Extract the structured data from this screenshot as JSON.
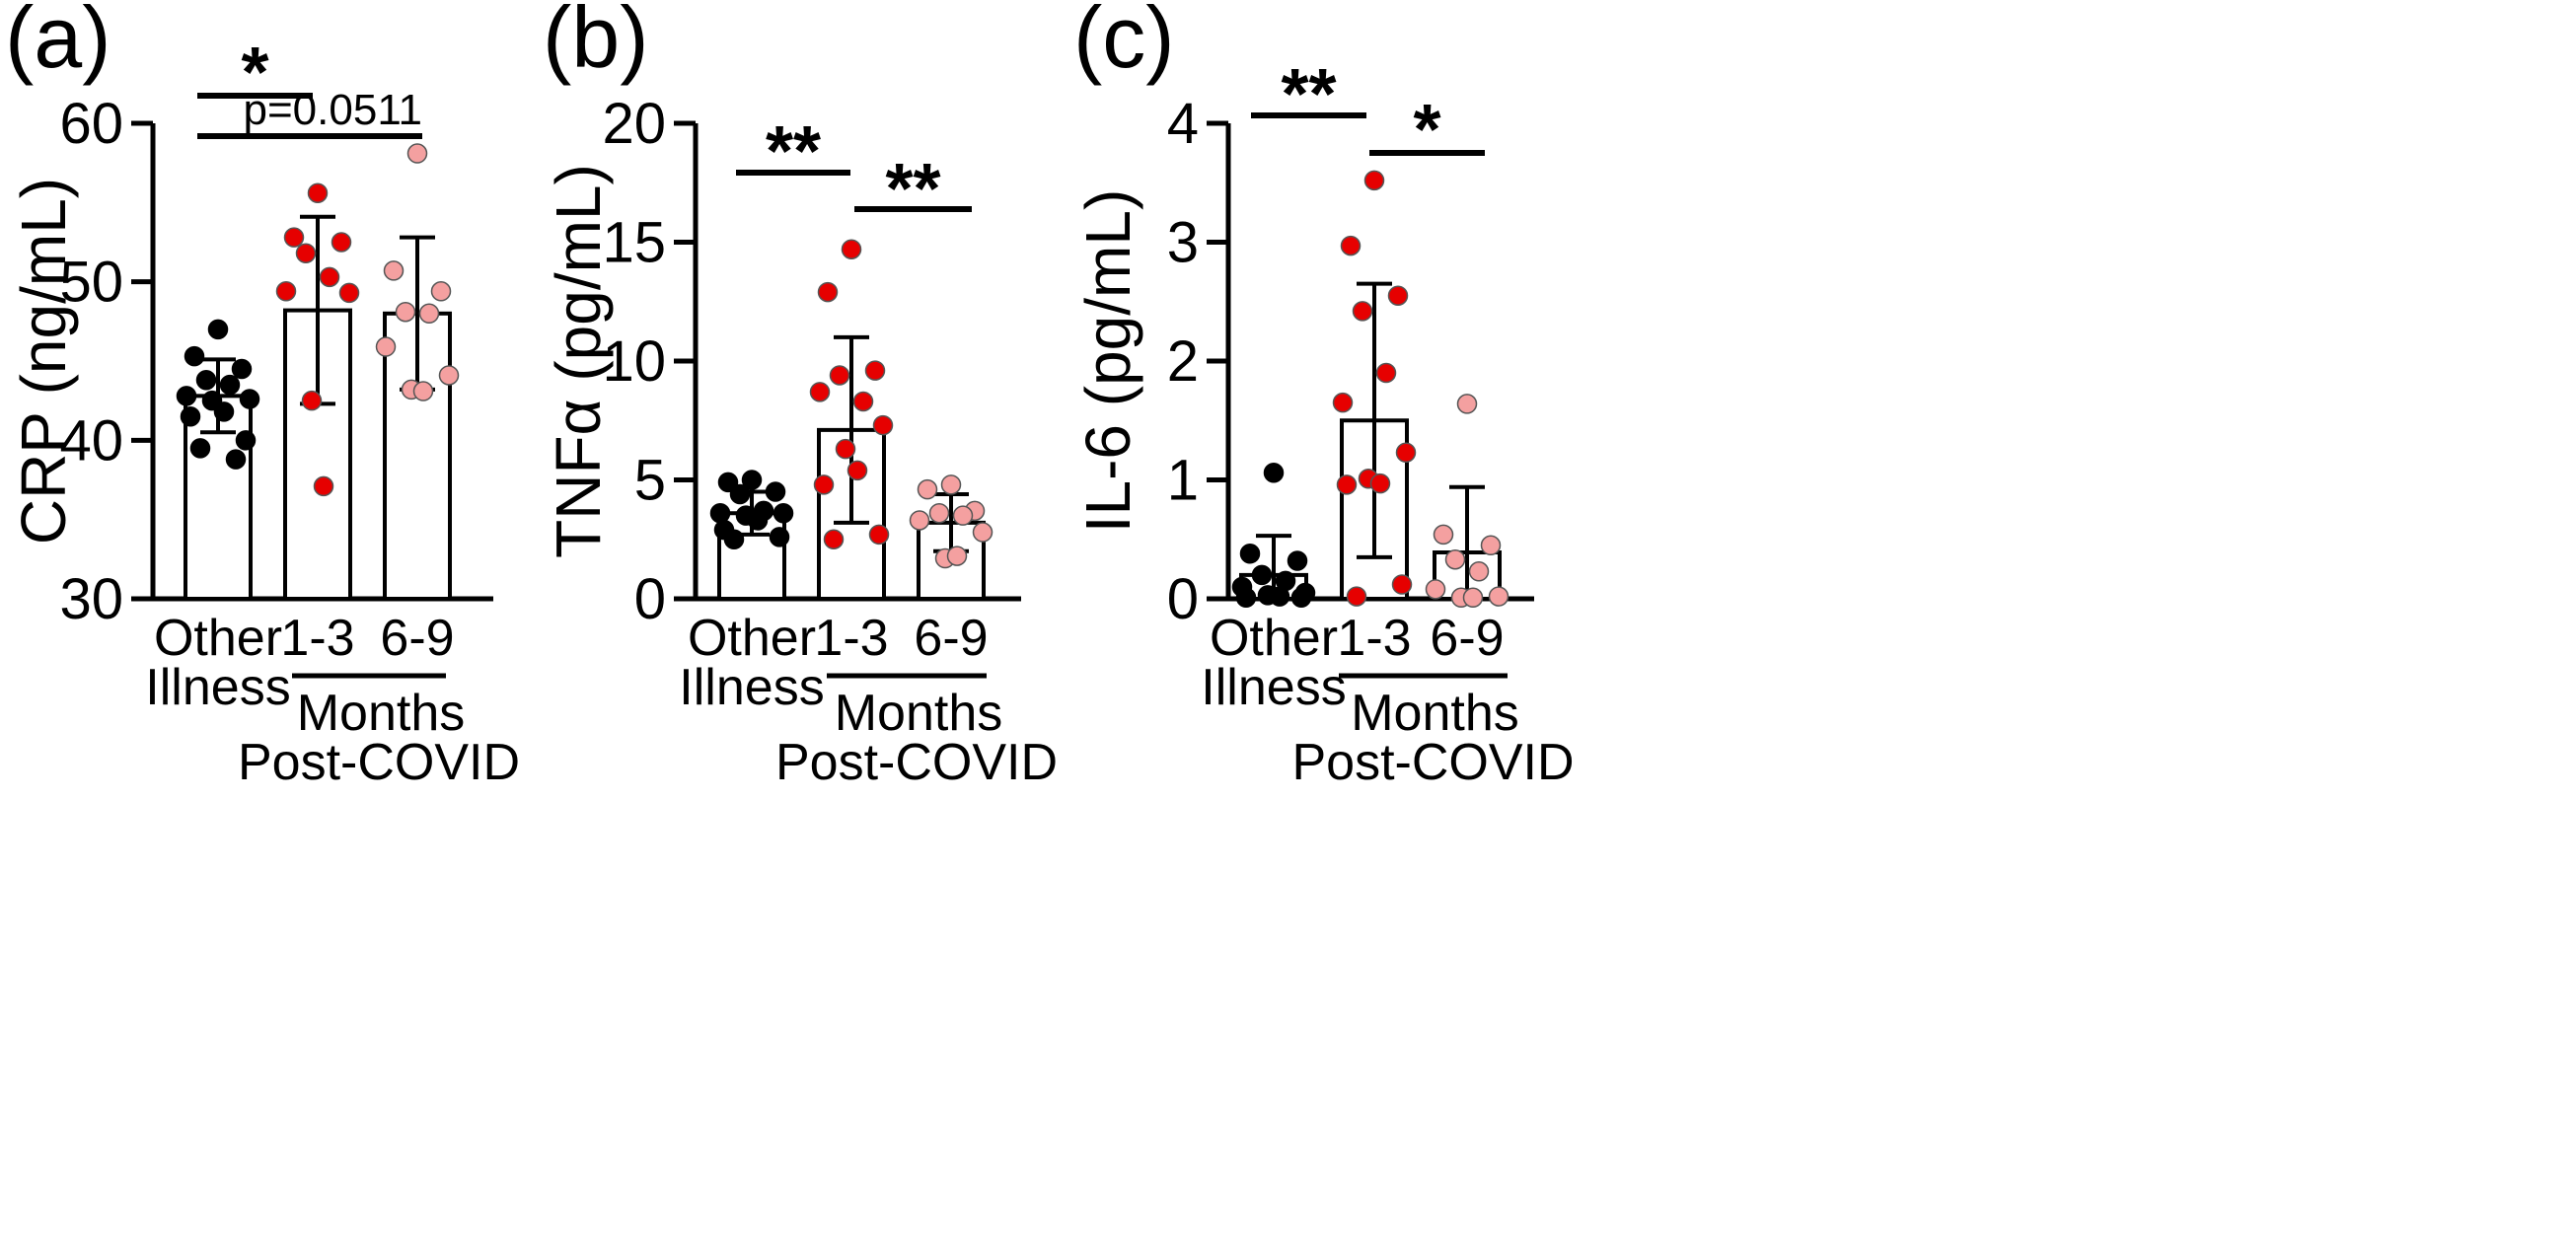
{
  "colors": {
    "other_illness": "#000000",
    "m1_3": "#e60000",
    "m6_9": "#f4a0a0",
    "axis": "#000000",
    "bar_fill": "#ffffff"
  },
  "group_label": {
    "line1": "Months",
    "line2": "Post-COVID"
  },
  "chart_data": [
    {
      "type": "bar",
      "panel_label": "(a)",
      "ylabel": "CRP (ng/mL)",
      "ylim": [
        30,
        60
      ],
      "yticks": [
        "30",
        "40",
        "50",
        "60"
      ],
      "categories": [
        {
          "line1": "Other",
          "line2": "Illness"
        },
        {
          "line1": "1-3",
          "line2": ""
        },
        {
          "line1": "6-9",
          "line2": ""
        }
      ],
      "series": [
        {
          "name": "Other Illness",
          "mean": 42.8,
          "sd": 2.3,
          "points": [
            47.0,
            45.3,
            44.5,
            43.8,
            43.5,
            42.8,
            42.6,
            42.5,
            41.8,
            41.5,
            40.0,
            39.5,
            38.8
          ]
        },
        {
          "name": "1-3",
          "mean": 48.2,
          "sd": 5.9,
          "points": [
            55.6,
            52.8,
            52.5,
            51.8,
            50.3,
            49.4,
            49.3,
            42.5,
            37.1
          ]
        },
        {
          "name": "6-9",
          "mean": 48.0,
          "sd": 4.8,
          "points": [
            58.1,
            50.7,
            49.4,
            48.1,
            48.0,
            45.9,
            44.1,
            43.2,
            43.1
          ]
        }
      ],
      "significance": [
        {
          "from": 0,
          "to": 1,
          "label": "*",
          "level": 1
        },
        {
          "from": 0,
          "to": 2,
          "label": "p=0.0511",
          "level": 0
        }
      ]
    },
    {
      "type": "bar",
      "panel_label": "(b)",
      "ylabel": "TNFα (pg/mL)",
      "ylim": [
        0,
        20
      ],
      "yticks": [
        "0",
        "5",
        "10",
        "15",
        "20"
      ],
      "categories": [
        {
          "line1": "Other",
          "line2": "Illness"
        },
        {
          "line1": "1-3",
          "line2": ""
        },
        {
          "line1": "6-9",
          "line2": ""
        }
      ],
      "series": [
        {
          "name": "Other Illness",
          "mean": 3.6,
          "sd": 0.9,
          "points": [
            5.0,
            4.9,
            4.5,
            4.4,
            3.7,
            3.6,
            3.6,
            3.5,
            3.3,
            2.9,
            2.6,
            2.5
          ]
        },
        {
          "name": "1-3",
          "mean": 7.1,
          "sd": 3.9,
          "points": [
            14.7,
            12.9,
            9.6,
            9.4,
            8.3,
            8.7,
            7.3,
            6.3,
            5.4,
            4.8,
            2.7,
            2.5
          ]
        },
        {
          "name": "6-9",
          "mean": 3.2,
          "sd": 1.2,
          "points": [
            4.8,
            4.6,
            3.7,
            3.6,
            3.5,
            3.3,
            2.8,
            1.7,
            1.8
          ]
        }
      ],
      "significance": [
        {
          "from": 0,
          "to": 1,
          "label": "**",
          "level": 1
        },
        {
          "from": 1,
          "to": 2,
          "label": "**",
          "level": 0
        }
      ]
    },
    {
      "type": "bar",
      "panel_label": "(c)",
      "ylabel": "IL-6 (pg/mL)",
      "ylim": [
        0,
        4
      ],
      "yticks": [
        "0",
        "1",
        "2",
        "3",
        "4"
      ],
      "categories": [
        {
          "line1": "Other",
          "line2": "Illness"
        },
        {
          "line1": "1-3",
          "line2": ""
        },
        {
          "line1": "6-9",
          "line2": ""
        }
      ],
      "series": [
        {
          "name": "Other Illness",
          "mean": 0.2,
          "sd": 0.33,
          "points": [
            1.06,
            0.38,
            0.32,
            0.2,
            0.15,
            0.1,
            0.05,
            0.03,
            0.02,
            0.01,
            0.01
          ]
        },
        {
          "name": "1-3",
          "mean": 1.5,
          "sd": 1.15,
          "points": [
            3.52,
            2.97,
            2.55,
            2.42,
            1.9,
            1.65,
            1.23,
            1.01,
            0.97,
            0.96,
            0.12,
            0.02
          ]
        },
        {
          "name": "6-9",
          "mean": 0.39,
          "sd": 0.55,
          "points": [
            1.64,
            0.54,
            0.45,
            0.33,
            0.23,
            0.08,
            0.02,
            0.01,
            0.01
          ]
        }
      ],
      "significance": [
        {
          "from": 0,
          "to": 1,
          "label": "**",
          "level": 1
        },
        {
          "from": 1,
          "to": 2,
          "label": "*",
          "level": 0
        }
      ]
    }
  ]
}
